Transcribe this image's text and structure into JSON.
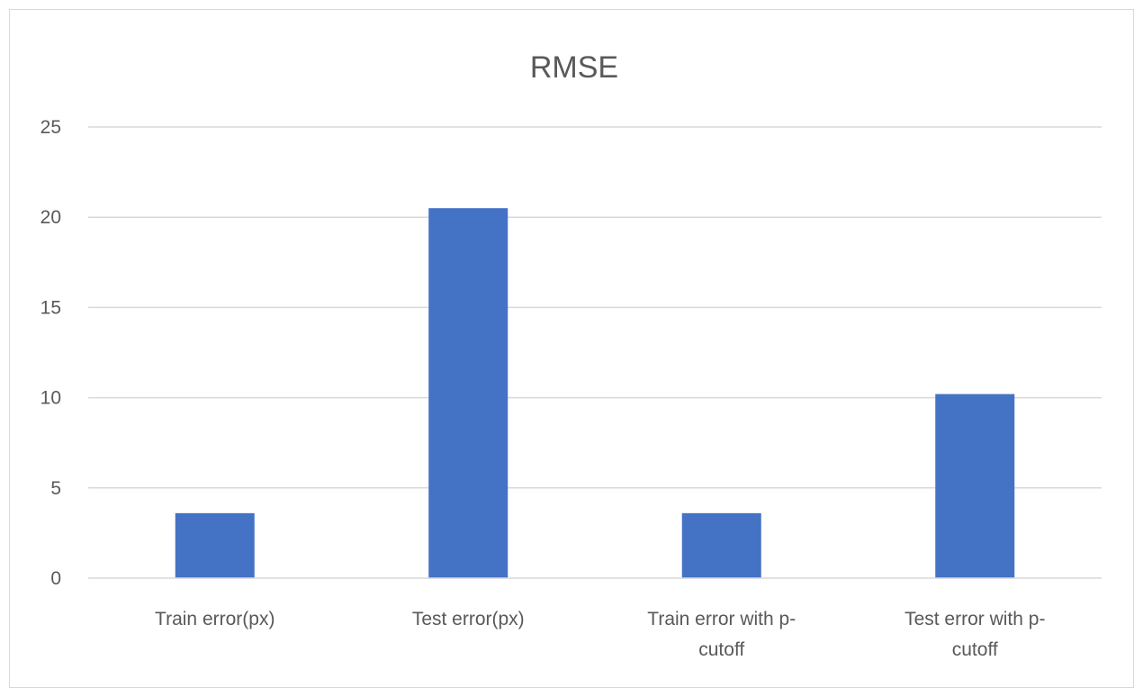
{
  "chart_data": {
    "type": "bar",
    "title": "RMSE",
    "xlabel": "",
    "ylabel": "",
    "categories": [
      [
        "Train error(px)"
      ],
      [
        "Test error(px)"
      ],
      [
        "Train error with p-",
        "cutoff"
      ],
      [
        "Test error with p-",
        "cutoff"
      ]
    ],
    "values": [
      3.6,
      20.5,
      3.6,
      10.2
    ],
    "ylim": [
      0,
      25
    ],
    "yticks": [
      0,
      5,
      10,
      15,
      20,
      25
    ],
    "grid": true,
    "legend": "none",
    "colors": {
      "bar": "#4472c4",
      "grid": "#d9d9d9",
      "text": "#595959",
      "border": "#d9d9d9"
    }
  }
}
